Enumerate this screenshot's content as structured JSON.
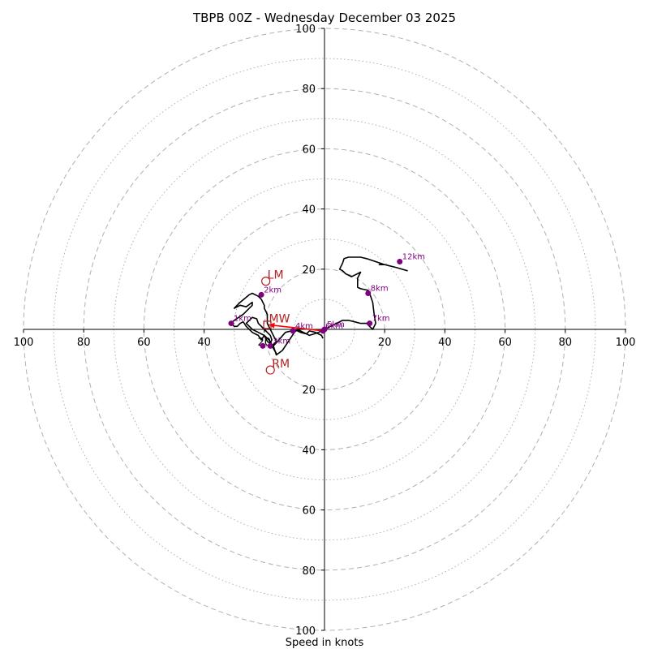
{
  "chart_data": {
    "type": "hodograph",
    "title": "TBPB 00Z - Wednesday December 03 2025",
    "xlabel": "Speed in knots",
    "range": [
      -100,
      100
    ],
    "ring_speeds_major": [
      20,
      40,
      60,
      80,
      100
    ],
    "ring_speeds_minor": [
      10,
      30,
      50,
      70,
      90
    ],
    "tick_labels": [
      "100",
      "80",
      "60",
      "40",
      "20",
      "20",
      "40",
      "60",
      "80",
      "100"
    ],
    "y_tick_labels": [
      "100",
      "80",
      "60",
      "40",
      "20",
      "20",
      "40",
      "60",
      "80",
      "100"
    ],
    "trace": [
      [
        -0.5,
        -3
      ],
      [
        -1,
        -2
      ],
      [
        -2,
        -1.5
      ],
      [
        -3,
        -1
      ],
      [
        -5,
        -0.5
      ],
      [
        -6,
        -1.5
      ],
      [
        -8,
        -1
      ],
      [
        -10,
        0
      ],
      [
        -11,
        -0.5
      ],
      [
        -13,
        -1
      ],
      [
        -16,
        -4.5
      ],
      [
        -17,
        -5.5
      ],
      [
        -19,
        -4
      ],
      [
        -20,
        -2
      ],
      [
        -21,
        -3.5
      ],
      [
        -22,
        -2
      ],
      [
        -23,
        -1.5
      ],
      [
        -24,
        -1
      ],
      [
        -26,
        1
      ],
      [
        -27,
        2.5
      ],
      [
        -28,
        2
      ],
      [
        -29,
        1
      ],
      [
        -30,
        1
      ],
      [
        -31,
        2
      ],
      [
        -30,
        3
      ],
      [
        -27,
        5
      ],
      [
        -24,
        8
      ],
      [
        -24,
        9
      ],
      [
        -26,
        7.5
      ],
      [
        -28,
        8
      ],
      [
        -30,
        7
      ],
      [
        -28,
        9
      ],
      [
        -25,
        11.5
      ],
      [
        -24,
        12
      ],
      [
        -22,
        11
      ],
      [
        -21,
        10
      ],
      [
        -20,
        8
      ],
      [
        -20,
        7
      ],
      [
        -19,
        5
      ],
      [
        -19,
        2
      ],
      [
        -18,
        0
      ],
      [
        -17,
        -2
      ],
      [
        -16,
        -4
      ],
      [
        -17.5,
        -5.5
      ],
      [
        -16,
        -8
      ],
      [
        -17,
        -6
      ],
      [
        -18,
        -4
      ],
      [
        -19,
        -3
      ],
      [
        -20,
        -2
      ],
      [
        -21,
        -1.5
      ],
      [
        -22,
        -1
      ],
      [
        -23,
        -0.5
      ],
      [
        -24,
        0
      ],
      [
        -25,
        1
      ],
      [
        -26,
        2
      ],
      [
        -25,
        3
      ],
      [
        -24,
        4
      ],
      [
        -22.5,
        3.5
      ],
      [
        -22,
        2
      ],
      [
        -20,
        0
      ],
      [
        -18,
        -2
      ],
      [
        -17.5,
        -3.5
      ],
      [
        -18,
        -4.5
      ],
      [
        -17,
        -5.5
      ],
      [
        -16,
        -8.5
      ],
      [
        -14,
        -7
      ],
      [
        -12,
        -4
      ],
      [
        -10,
        -1
      ],
      [
        -9,
        0
      ],
      [
        -7,
        -1
      ],
      [
        -5,
        -2
      ],
      [
        -3.5,
        -1.5
      ],
      [
        -2,
        -1
      ],
      [
        -1,
        -0.5
      ],
      [
        0,
        0
      ],
      [
        2,
        1
      ],
      [
        4,
        2
      ],
      [
        6,
        3
      ],
      [
        8,
        3
      ],
      [
        10,
        2.5
      ],
      [
        12,
        2
      ],
      [
        14,
        2
      ],
      [
        15,
        1
      ],
      [
        16,
        0
      ],
      [
        17,
        2
      ],
      [
        16.5,
        5
      ],
      [
        16,
        9
      ],
      [
        15,
        12
      ],
      [
        14.5,
        13
      ],
      [
        12,
        13.5
      ],
      [
        11,
        14
      ],
      [
        11,
        16
      ],
      [
        11,
        17
      ],
      [
        12,
        19
      ],
      [
        10,
        18
      ],
      [
        9,
        17.5
      ],
      [
        7,
        18.5
      ],
      [
        6,
        19.5
      ],
      [
        5,
        20
      ],
      [
        6,
        22
      ],
      [
        6.5,
        23.5
      ],
      [
        8,
        24
      ],
      [
        12,
        24
      ],
      [
        14,
        23.5
      ],
      [
        17,
        22.5
      ],
      [
        20,
        21.5
      ],
      [
        24,
        20.5
      ],
      [
        27.5,
        19.5
      ],
      [
        24,
        20.5
      ],
      [
        20,
        21.5
      ],
      [
        18,
        21.5
      ]
    ],
    "height_markers": [
      {
        "label": "1km",
        "u": -31,
        "v": 2
      },
      {
        "label": "2km",
        "u": -21,
        "v": 11.5
      },
      {
        "label": "3km",
        "u": -18,
        "v": -5.5
      },
      {
        "label": "",
        "u": -20.5,
        "v": -5.5
      },
      {
        "label": "4km",
        "u": -10.5,
        "v": -0.5
      },
      {
        "label": "5km",
        "u": 0,
        "v": 0
      },
      {
        "label": "6km",
        "u": -0.5,
        "v": -0.5
      },
      {
        "label": "7km",
        "u": 15,
        "v": 2
      },
      {
        "label": "8km",
        "u": 14.5,
        "v": 12
      },
      {
        "label": "12km",
        "u": 25,
        "v": 22.5
      }
    ],
    "motion_markers": [
      {
        "label": "LM",
        "u": -19.5,
        "v": 16
      },
      {
        "label": "MW",
        "u": -19,
        "v": 1.5
      },
      {
        "label": "RM",
        "u": -18,
        "v": -13.5
      }
    ],
    "shear_vector": {
      "from": [
        -0.5,
        -0.5
      ],
      "to": [
        -18.5,
        1.5
      ]
    },
    "colors": {
      "trace": "#000000",
      "heights": "#800080",
      "motion": "#b22222",
      "shear": "#ff0000",
      "grid": "#b0b0b0",
      "axis": "#000000"
    }
  }
}
